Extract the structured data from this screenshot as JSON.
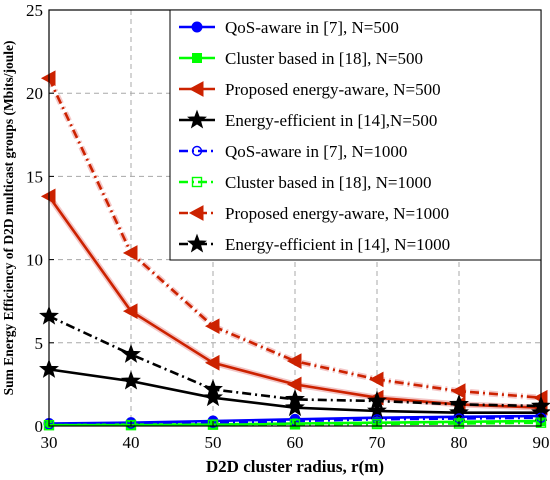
{
  "chart_data": {
    "type": "line",
    "xlabel": "D2D cluster radius, r(m)",
    "ylabel": "Sum Energy Efficiency of D2D multicast groups (Mbits/joule)",
    "xlim": [
      30,
      90
    ],
    "ylim": [
      0,
      25
    ],
    "xticks": [
      "30",
      "40",
      "50",
      "60",
      "70",
      "80",
      "90"
    ],
    "yticks": [
      "0",
      "5",
      "10",
      "15",
      "20",
      "25"
    ],
    "grid": true,
    "legend_position": "top-right",
    "x": [
      30,
      40,
      50,
      60,
      70,
      80,
      90
    ],
    "series": [
      {
        "name": "QoS-aware in [7], N=500",
        "color": "#0000ff",
        "dash": "solid",
        "marker": "circle",
        "values": [
          0.15,
          0.2,
          0.3,
          0.4,
          0.5,
          0.55,
          0.6
        ]
      },
      {
        "name": "Cluster based in [18], N=500",
        "color": "#00ff00",
        "dash": "solid",
        "marker": "square",
        "values": [
          0.05,
          0.08,
          0.1,
          0.15,
          0.2,
          0.25,
          0.3
        ]
      },
      {
        "name": "Proposed energy-aware, N=500",
        "color": "#cc2200",
        "dash": "solid",
        "marker": "triangle-left",
        "values": [
          13.8,
          6.9,
          3.8,
          2.5,
          1.7,
          1.3,
          1.1
        ]
      },
      {
        "name": "Energy-efficient in [14],N=500",
        "color": "#000000",
        "dash": "solid",
        "marker": "star",
        "values": [
          3.4,
          2.7,
          1.7,
          1.1,
          0.9,
          0.8,
          0.8
        ]
      },
      {
        "name": "QoS-aware in [7], N=1000",
        "color": "#0000ff",
        "dash": "dashdot",
        "marker": "circle-open",
        "values": [
          0.1,
          0.15,
          0.2,
          0.3,
          0.4,
          0.45,
          0.5
        ]
      },
      {
        "name": "Cluster based in [18], N=1000",
        "color": "#00ff00",
        "dash": "dashdot",
        "marker": "square-open",
        "values": [
          0.05,
          0.05,
          0.08,
          0.1,
          0.12,
          0.15,
          0.2
        ]
      },
      {
        "name": "Proposed energy-aware, N=1000",
        "color": "#cc2200",
        "dash": "dashdot",
        "marker": "triangle-left",
        "values": [
          20.9,
          10.4,
          6.0,
          3.9,
          2.8,
          2.1,
          1.7
        ]
      },
      {
        "name": "Energy-efficient in [14], N=1000",
        "color": "#000000",
        "dash": "dashdot",
        "marker": "star",
        "values": [
          6.6,
          4.3,
          2.2,
          1.6,
          1.5,
          1.3,
          1.2
        ]
      }
    ]
  }
}
